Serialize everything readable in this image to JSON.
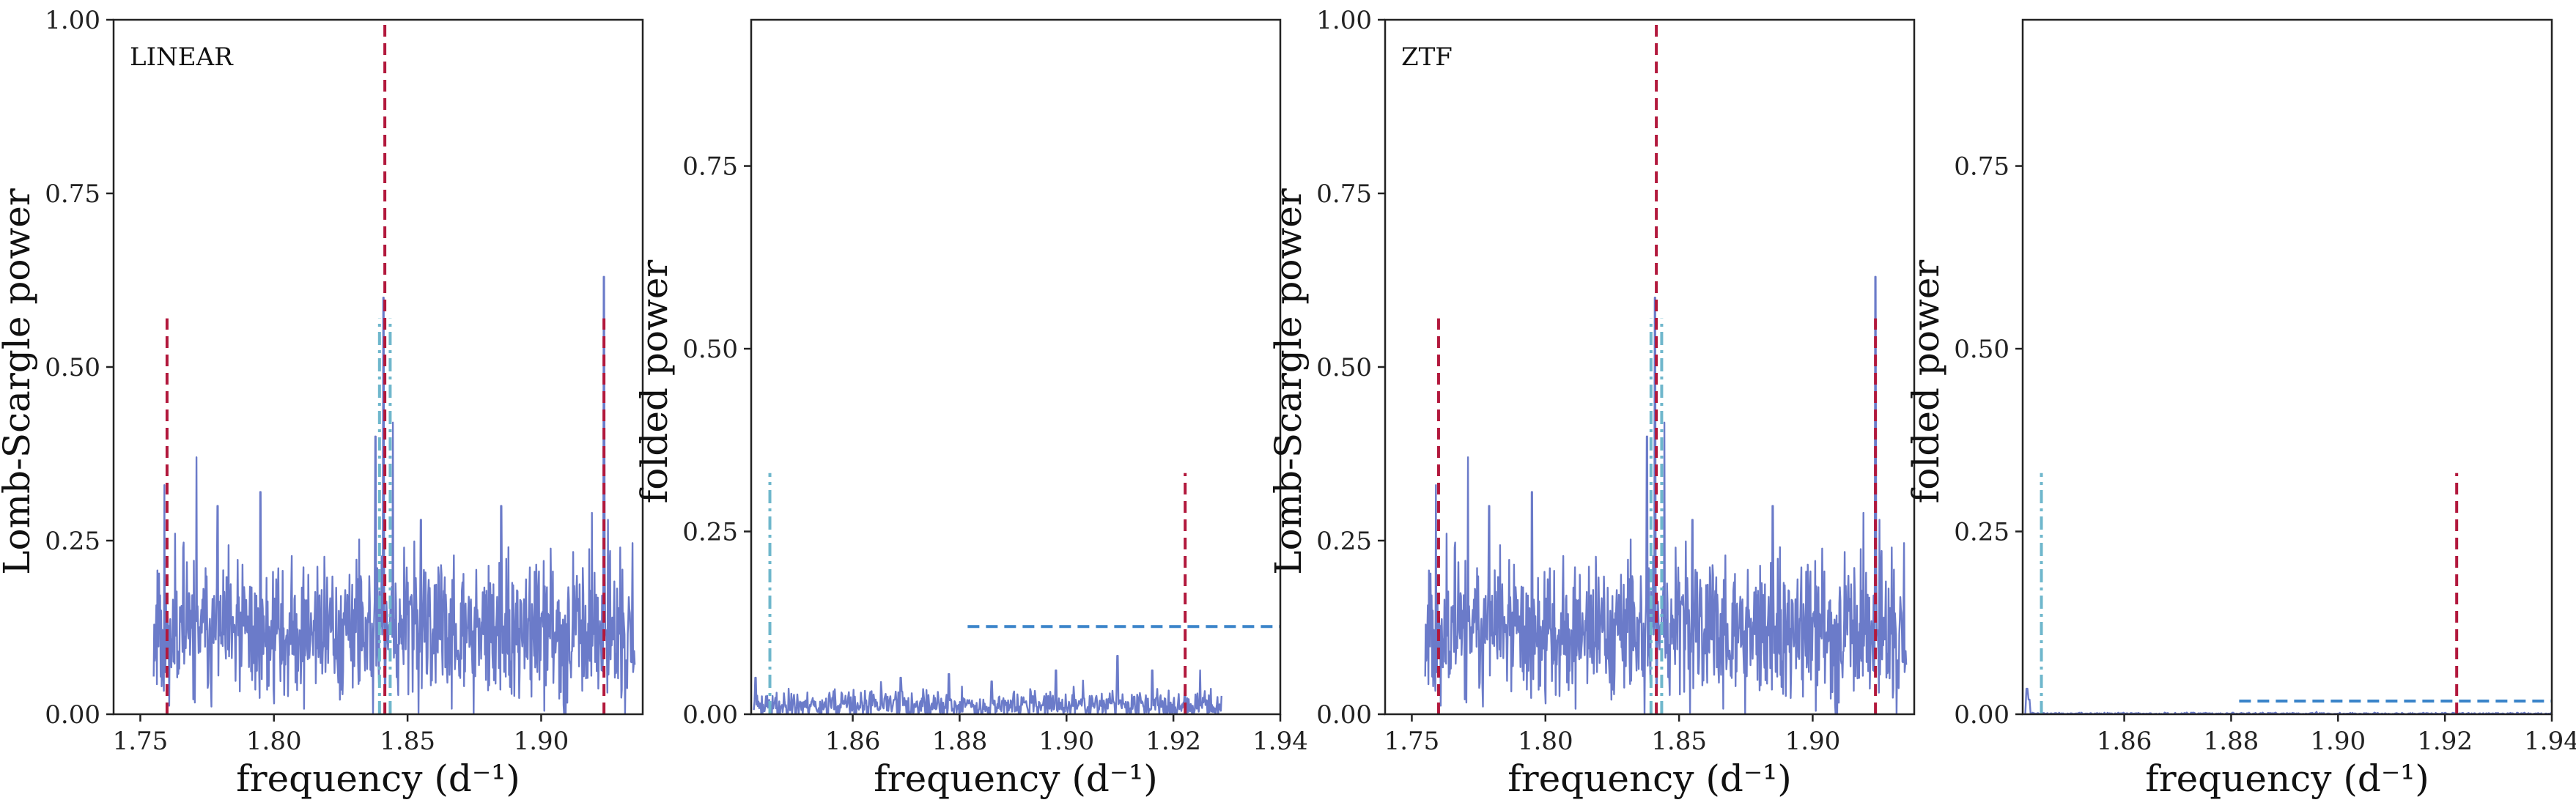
{
  "chart_data": [
    {
      "type": "line",
      "panel_label": "LINEAR",
      "xlabel": "frequency",
      "xlabel_unit": "(d⁻¹)",
      "ylabel": "Lomb-Scargle power",
      "xlim": [
        1.74,
        1.938
      ],
      "ylim": [
        0,
        1.0
      ],
      "xticks": [
        1.75,
        1.8,
        1.85,
        1.9
      ],
      "xtick_labels": [
        "1.75",
        "1.80",
        "1.85",
        "1.90"
      ],
      "yticks": [
        0,
        0.25,
        0.5,
        0.75,
        1.0
      ],
      "ytick_labels": [
        "0.00",
        "0.25",
        "0.50",
        "0.75",
        "1.00"
      ],
      "grid": false,
      "colors": {
        "series": "#6b7bc9",
        "red": "#b2183c",
        "cyan": "#6fb7cc"
      },
      "series": [
        {
          "kind": "noise",
          "x_start": 1.755,
          "x_end": 1.935,
          "n": 900,
          "base": 0.115,
          "spread": 0.06,
          "seed": 11,
          "spikes": [
            [
              1.759,
              0.33
            ],
            [
              1.763,
              0.26
            ],
            [
              1.771,
              0.37
            ],
            [
              1.779,
              0.3
            ],
            [
              1.795,
              0.32
            ],
            [
              1.838,
              0.4
            ],
            [
              1.841,
              0.6
            ],
            [
              1.8445,
              0.42
            ],
            [
              1.855,
              0.28
            ],
            [
              1.885,
              0.3
            ],
            [
              1.919,
              0.29
            ],
            [
              1.9235,
              0.63
            ],
            [
              1.925,
              0.28
            ]
          ]
        }
      ],
      "vlines": [
        {
          "x": 1.76,
          "y0": 0,
          "y1": 0.57,
          "color": "red",
          "style": "dashed"
        },
        {
          "x": 1.8415,
          "y0": 0,
          "y1": 1.0,
          "color": "red",
          "style": "dashed"
        },
        {
          "x": 1.9235,
          "y0": 0,
          "y1": 0.57,
          "color": "red",
          "style": "dashed"
        },
        {
          "x": 1.8395,
          "y0": 0,
          "y1": 0.57,
          "color": "cyan",
          "style": "dashdot"
        },
        {
          "x": 1.8435,
          "y0": 0,
          "y1": 0.57,
          "color": "cyan",
          "style": "dashdot"
        }
      ],
      "hlines": []
    },
    {
      "type": "line",
      "panel_label": "",
      "xlabel": "frequency",
      "xlabel_unit": "(d⁻¹)",
      "ylabel": "folded power",
      "xlim": [
        1.841,
        1.94
      ],
      "ylim": [
        0,
        0.95
      ],
      "xticks": [
        1.86,
        1.88,
        1.9,
        1.92,
        1.94
      ],
      "xtick_labels": [
        "1.86",
        "1.88",
        "1.90",
        "1.92",
        "1.94"
      ],
      "yticks": [
        0,
        0.25,
        0.5,
        0.75
      ],
      "ytick_labels": [
        "0.00",
        "0.25",
        "0.50",
        "0.75"
      ],
      "grid": false,
      "colors": {
        "series": "#6b7bc9",
        "red": "#b2183c",
        "cyan": "#6fb7cc",
        "blue": "#3a84c9"
      },
      "series": [
        {
          "kind": "noise",
          "x_start": 1.8415,
          "x_end": 1.929,
          "n": 700,
          "base": 0.012,
          "spread": 0.012,
          "seed": 23,
          "spikes": [
            [
              1.8418,
              0.05
            ],
            [
              1.848,
              0.035
            ],
            [
              1.869,
              0.05
            ],
            [
              1.878,
              0.055
            ],
            [
              1.886,
              0.045
            ],
            [
              1.898,
              0.06
            ],
            [
              1.9095,
              0.08
            ],
            [
              1.916,
              0.06
            ],
            [
              1.925,
              0.06
            ]
          ]
        }
      ],
      "vlines": [
        {
          "x": 1.8445,
          "y0": 0,
          "y1": 0.33,
          "color": "cyan",
          "style": "dashdot"
        },
        {
          "x": 1.9222,
          "y0": 0,
          "y1": 0.33,
          "color": "red",
          "style": "dashed"
        }
      ],
      "hlines": [
        {
          "y": 0.12,
          "x0": 1.8815,
          "x1": 1.94,
          "color": "blue",
          "style": "dashed"
        }
      ]
    },
    {
      "type": "line",
      "panel_label": "ZTF",
      "xlabel": "frequency",
      "xlabel_unit": "(d⁻¹)",
      "ylabel": "Lomb-Scargle power",
      "xlim": [
        1.74,
        1.938
      ],
      "ylim": [
        0,
        1.0
      ],
      "xticks": [
        1.75,
        1.8,
        1.85,
        1.9
      ],
      "xtick_labels": [
        "1.75",
        "1.80",
        "1.85",
        "1.90"
      ],
      "yticks": [
        0,
        0.25,
        0.5,
        0.75,
        1.0
      ],
      "ytick_labels": [
        "0.00",
        "0.25",
        "0.50",
        "0.75",
        "1.00"
      ],
      "grid": false,
      "colors": {
        "series": "#6b7bc9",
        "red": "#b2183c",
        "cyan": "#6fb7cc"
      },
      "series": [
        {
          "kind": "noise",
          "x_start": 1.755,
          "x_end": 1.935,
          "n": 900,
          "base": 0.115,
          "spread": 0.06,
          "seed": 11,
          "spikes": [
            [
              1.759,
              0.33
            ],
            [
              1.763,
              0.26
            ],
            [
              1.771,
              0.37
            ],
            [
              1.779,
              0.3
            ],
            [
              1.795,
              0.32
            ],
            [
              1.838,
              0.4
            ],
            [
              1.841,
              0.6
            ],
            [
              1.8445,
              0.42
            ],
            [
              1.855,
              0.28
            ],
            [
              1.885,
              0.3
            ],
            [
              1.919,
              0.29
            ],
            [
              1.9235,
              0.63
            ],
            [
              1.925,
              0.28
            ]
          ]
        }
      ],
      "vlines": [
        {
          "x": 1.76,
          "y0": 0,
          "y1": 0.57,
          "color": "red",
          "style": "dashed"
        },
        {
          "x": 1.8415,
          "y0": 0,
          "y1": 1.0,
          "color": "red",
          "style": "dashed"
        },
        {
          "x": 1.9235,
          "y0": 0,
          "y1": 0.57,
          "color": "red",
          "style": "dashed"
        },
        {
          "x": 1.8395,
          "y0": 0,
          "y1": 0.57,
          "color": "cyan",
          "style": "dashdot"
        },
        {
          "x": 1.8435,
          "y0": 0,
          "y1": 0.57,
          "color": "cyan",
          "style": "dashdot"
        }
      ],
      "hlines": []
    },
    {
      "type": "line",
      "panel_label": "",
      "xlabel": "frequency",
      "xlabel_unit": "(d⁻¹)",
      "ylabel": "folded power",
      "xlim": [
        1.841,
        1.94
      ],
      "ylim": [
        0,
        0.95
      ],
      "xticks": [
        1.86,
        1.88,
        1.9,
        1.92,
        1.94
      ],
      "xtick_labels": [
        "1.86",
        "1.88",
        "1.90",
        "1.92",
        "1.94"
      ],
      "yticks": [
        0,
        0.25,
        0.5,
        0.75
      ],
      "ytick_labels": [
        "0.00",
        "0.25",
        "0.50",
        "0.75"
      ],
      "grid": false,
      "colors": {
        "series": "#6b7bc9",
        "red": "#b2183c",
        "cyan": "#6fb7cc",
        "blue": "#3a84c9"
      },
      "series": [
        {
          "kind": "noise",
          "x_start": 1.8415,
          "x_end": 1.94,
          "n": 500,
          "base": 0.0008,
          "spread": 0.0008,
          "seed": 37,
          "spikes": [
            [
              1.8418,
              0.035
            ],
            [
              1.8422,
              0.02
            ]
          ]
        }
      ],
      "vlines": [
        {
          "x": 1.8445,
          "y0": 0,
          "y1": 0.33,
          "color": "cyan",
          "style": "dashdot"
        },
        {
          "x": 1.9222,
          "y0": 0,
          "y1": 0.33,
          "color": "red",
          "style": "dashed"
        }
      ],
      "hlines": [
        {
          "y": 0.018,
          "x0": 1.8815,
          "x1": 1.94,
          "color": "blue",
          "style": "dashed"
        }
      ]
    }
  ]
}
